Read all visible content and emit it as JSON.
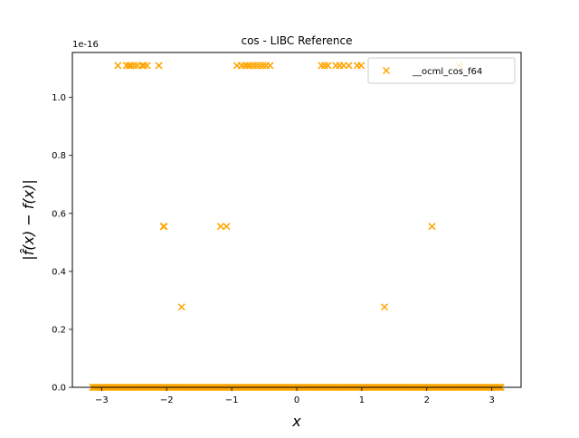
{
  "chart_data": {
    "type": "scatter",
    "title": "cos - LIBC Reference",
    "xlabel": "x",
    "ylabel": "|f̂(x) − f(x)|",
    "y_offset_text": "1e-16",
    "xlim": [
      -3.45,
      3.45
    ],
    "ylim": [
      0,
      1.155
    ],
    "x_ticks": [
      -3,
      -2,
      -1,
      0,
      1,
      2,
      3
    ],
    "y_ticks": [
      0.0,
      0.2,
      0.4,
      0.6,
      0.8,
      1.0
    ],
    "y_tick_labels": [
      "0.0",
      "0.2",
      "0.4",
      "0.6",
      "0.8",
      "1.0"
    ],
    "legend_position": "upper right",
    "grid": false,
    "series": [
      {
        "name": "__ocml_cos_f64",
        "color": "#ffa500",
        "marker": "x",
        "points": [
          {
            "x": -2.75,
            "y": 1.11
          },
          {
            "x": -2.62,
            "y": 1.11
          },
          {
            "x": -2.58,
            "y": 1.11
          },
          {
            "x": -2.55,
            "y": 1.11
          },
          {
            "x": -2.5,
            "y": 1.11
          },
          {
            "x": -2.45,
            "y": 1.11
          },
          {
            "x": -2.38,
            "y": 1.11
          },
          {
            "x": -2.35,
            "y": 1.11
          },
          {
            "x": -2.3,
            "y": 1.11
          },
          {
            "x": -2.12,
            "y": 1.11
          },
          {
            "x": -0.92,
            "y": 1.11
          },
          {
            "x": -0.85,
            "y": 1.11
          },
          {
            "x": -0.8,
            "y": 1.11
          },
          {
            "x": -0.76,
            "y": 1.11
          },
          {
            "x": -0.72,
            "y": 1.11
          },
          {
            "x": -0.67,
            "y": 1.11
          },
          {
            "x": -0.62,
            "y": 1.11
          },
          {
            "x": -0.57,
            "y": 1.11
          },
          {
            "x": -0.52,
            "y": 1.11
          },
          {
            "x": -0.47,
            "y": 1.11
          },
          {
            "x": -0.41,
            "y": 1.11
          },
          {
            "x": 0.38,
            "y": 1.11
          },
          {
            "x": 0.43,
            "y": 1.11
          },
          {
            "x": 0.48,
            "y": 1.11
          },
          {
            "x": 0.6,
            "y": 1.11
          },
          {
            "x": 0.66,
            "y": 1.11
          },
          {
            "x": 0.72,
            "y": 1.11
          },
          {
            "x": 0.8,
            "y": 1.11
          },
          {
            "x": 0.93,
            "y": 1.11
          },
          {
            "x": 0.99,
            "y": 1.11
          },
          {
            "x": 2.5,
            "y": 1.11
          },
          {
            "x": -2.05,
            "y": 0.555
          },
          {
            "x": -2.04,
            "y": 0.555
          },
          {
            "x": -1.17,
            "y": 0.555
          },
          {
            "x": -1.08,
            "y": 0.555
          },
          {
            "x": 2.08,
            "y": 0.555
          },
          {
            "x": -1.77,
            "y": 0.277
          },
          {
            "x": 1.35,
            "y": 0.277
          }
        ],
        "baseline": {
          "y": 0,
          "x_from": -3.14,
          "x_to": 3.14,
          "step": 0.02
        }
      }
    ]
  }
}
